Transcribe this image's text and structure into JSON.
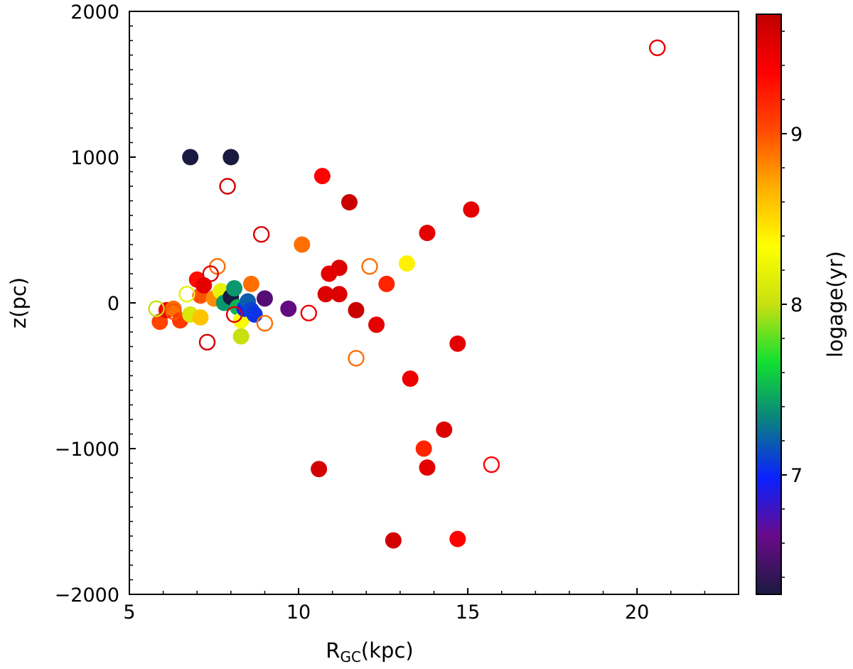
{
  "chart_data": {
    "type": "scatter",
    "xlabel": "R",
    "xlabel_sub": "GC",
    "xlabel_unit": "(kpc)",
    "ylabel": "z(pc)",
    "xlim": [
      5,
      23
    ],
    "ylim": [
      -2000,
      2000
    ],
    "x_ticks": [
      5,
      10,
      15,
      20
    ],
    "x_tick_labels": [
      "5",
      "10",
      "15",
      "20"
    ],
    "y_ticks": [
      -2000,
      -1000,
      0,
      1000,
      2000
    ],
    "y_tick_labels": [
      "−2000",
      "−1000",
      "0",
      "1000",
      "2000"
    ],
    "colorbar": {
      "label": "logage(yr)",
      "range": [
        6.3,
        9.7
      ],
      "ticks": [
        7,
        8,
        9
      ],
      "tick_labels": [
        "7",
        "8",
        "9"
      ],
      "colormap": [
        "#1a1a40",
        "#6a0a8a",
        "#0a20ff",
        "#0a8080",
        "#10e030",
        "#c8e010",
        "#ffff00",
        "#ffb000",
        "#ff4a00",
        "#ff0000",
        "#c00000"
      ]
    },
    "series": [
      {
        "name": "filled",
        "points": [
          {
            "x": 6.8,
            "y": 1000,
            "age": 6.3
          },
          {
            "x": 8.0,
            "y": 1000,
            "age": 6.3
          },
          {
            "x": 10.7,
            "y": 870,
            "age": 9.35
          },
          {
            "x": 11.5,
            "y": 690,
            "age": 9.65
          },
          {
            "x": 15.1,
            "y": 640,
            "age": 9.5
          },
          {
            "x": 13.8,
            "y": 480,
            "age": 9.5
          },
          {
            "x": 10.1,
            "y": 400,
            "age": 8.9
          },
          {
            "x": 13.2,
            "y": 270,
            "age": 8.4
          },
          {
            "x": 11.2,
            "y": 240,
            "age": 9.55
          },
          {
            "x": 10.9,
            "y": 200,
            "age": 9.5
          },
          {
            "x": 12.6,
            "y": 130,
            "age": 9.2
          },
          {
            "x": 10.8,
            "y": 60,
            "age": 9.55
          },
          {
            "x": 11.2,
            "y": 60,
            "age": 9.55
          },
          {
            "x": 11.7,
            "y": -50,
            "age": 9.65
          },
          {
            "x": 12.3,
            "y": -150,
            "age": 9.5
          },
          {
            "x": 14.7,
            "y": -280,
            "age": 9.5
          },
          {
            "x": 13.3,
            "y": -520,
            "age": 9.45
          },
          {
            "x": 14.3,
            "y": -870,
            "age": 9.55
          },
          {
            "x": 13.7,
            "y": -1000,
            "age": 9.2
          },
          {
            "x": 13.8,
            "y": -1130,
            "age": 9.5
          },
          {
            "x": 10.6,
            "y": -1140,
            "age": 9.6
          },
          {
            "x": 12.8,
            "y": -1630,
            "age": 9.6
          },
          {
            "x": 14.7,
            "y": -1620,
            "age": 9.35
          },
          {
            "x": 5.9,
            "y": -130,
            "age": 9.05
          },
          {
            "x": 6.1,
            "y": -50,
            "age": 9.4
          },
          {
            "x": 6.3,
            "y": -40,
            "age": 8.9
          },
          {
            "x": 6.5,
            "y": -120,
            "age": 9.1
          },
          {
            "x": 6.8,
            "y": -80,
            "age": 8.1
          },
          {
            "x": 7.0,
            "y": 160,
            "age": 9.3
          },
          {
            "x": 7.1,
            "y": 50,
            "age": 9.0
          },
          {
            "x": 7.2,
            "y": 120,
            "age": 9.5
          },
          {
            "x": 7.1,
            "y": -100,
            "age": 8.6
          },
          {
            "x": 7.5,
            "y": 30,
            "age": 8.8
          },
          {
            "x": 7.7,
            "y": 80,
            "age": 8.2
          },
          {
            "x": 7.8,
            "y": 0,
            "age": 7.4
          },
          {
            "x": 8.0,
            "y": 40,
            "age": 6.3
          },
          {
            "x": 8.1,
            "y": 100,
            "age": 7.4
          },
          {
            "x": 8.2,
            "y": -30,
            "age": 7.5
          },
          {
            "x": 8.3,
            "y": -120,
            "age": 8.3
          },
          {
            "x": 8.3,
            "y": -230,
            "age": 8.0
          },
          {
            "x": 8.4,
            "y": -40,
            "age": 7.0
          },
          {
            "x": 8.5,
            "y": 10,
            "age": 7.2
          },
          {
            "x": 8.6,
            "y": -50,
            "age": 7.1
          },
          {
            "x": 8.7,
            "y": -80,
            "age": 7.05
          },
          {
            "x": 8.6,
            "y": 130,
            "age": 8.9
          },
          {
            "x": 9.0,
            "y": 30,
            "age": 6.55
          },
          {
            "x": 9.7,
            "y": -40,
            "age": 6.6
          }
        ]
      },
      {
        "name": "open",
        "points": [
          {
            "x": 20.6,
            "y": 1750,
            "age": 9.5
          },
          {
            "x": 7.9,
            "y": 800,
            "age": 9.6
          },
          {
            "x": 8.9,
            "y": 470,
            "age": 9.55
          },
          {
            "x": 7.6,
            "y": 250,
            "age": 8.9
          },
          {
            "x": 7.4,
            "y": 200,
            "age": 9.5
          },
          {
            "x": 12.1,
            "y": 250,
            "age": 8.9
          },
          {
            "x": 6.7,
            "y": 60,
            "age": 8.2
          },
          {
            "x": 5.8,
            "y": -40,
            "age": 8.0
          },
          {
            "x": 6.3,
            "y": -60,
            "age": 9.0
          },
          {
            "x": 8.1,
            "y": -80,
            "age": 9.55
          },
          {
            "x": 9.0,
            "y": -140,
            "age": 8.9
          },
          {
            "x": 10.3,
            "y": -70,
            "age": 9.45
          },
          {
            "x": 7.3,
            "y": -270,
            "age": 9.6
          },
          {
            "x": 11.7,
            "y": -380,
            "age": 8.9
          },
          {
            "x": 15.7,
            "y": -1110,
            "age": 9.35
          }
        ]
      }
    ]
  }
}
